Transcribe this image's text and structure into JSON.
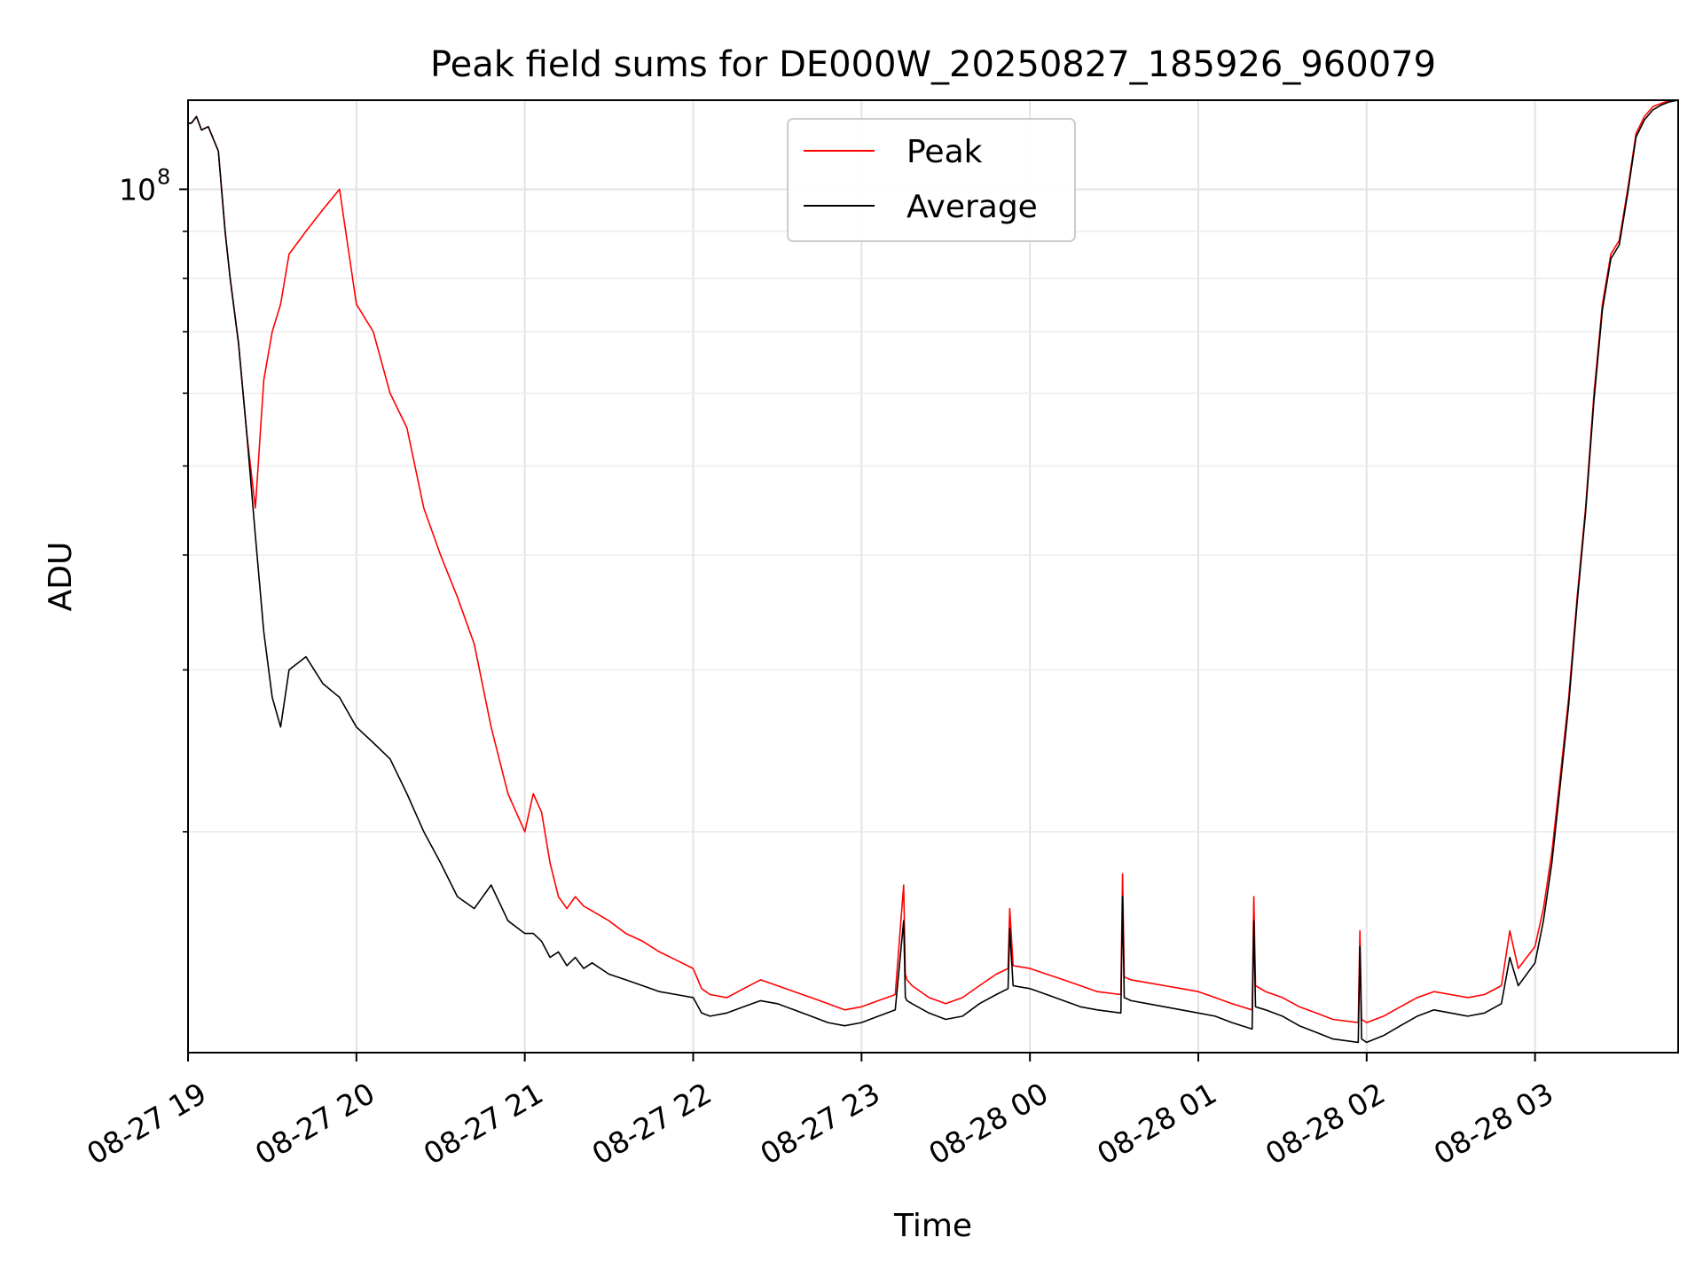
{
  "chart_data": {
    "type": "line",
    "title": "Peak field sums for DE000W_20250827_185926_960079",
    "xlabel": "Time",
    "ylabel": "ADU",
    "x_unit": "hours since 08-27 19:00",
    "xlim": [
      0,
      8.85
    ],
    "ylim": [
      11500000,
      125000000
    ],
    "y_scale": "log",
    "grid": true,
    "legend": {
      "placement": "top-center"
    },
    "x_ticks": [
      {
        "value": 0,
        "label": "08-27 19"
      },
      {
        "value": 1,
        "label": "08-27 20"
      },
      {
        "value": 2,
        "label": "08-27 21"
      },
      {
        "value": 3,
        "label": "08-27 22"
      },
      {
        "value": 4,
        "label": "08-27 23"
      },
      {
        "value": 5,
        "label": "08-28 00"
      },
      {
        "value": 6,
        "label": "08-28 01"
      },
      {
        "value": 7,
        "label": "08-28 02"
      },
      {
        "value": 8,
        "label": "08-28 03"
      }
    ],
    "y_ticks": [
      {
        "value": 100000000,
        "label": "10",
        "exp": "8"
      }
    ],
    "series": [
      {
        "name": "Peak",
        "color": "#ff0000",
        "x": [
          0.0,
          0.02,
          0.05,
          0.08,
          0.12,
          0.18,
          0.22,
          0.25,
          0.3,
          0.35,
          0.4,
          0.45,
          0.5,
          0.55,
          0.6,
          0.7,
          0.8,
          0.9,
          1.0,
          1.1,
          1.2,
          1.3,
          1.4,
          1.5,
          1.6,
          1.7,
          1.8,
          1.9,
          2.0,
          2.05,
          2.1,
          2.15,
          2.2,
          2.25,
          2.3,
          2.35,
          2.4,
          2.5,
          2.6,
          2.7,
          2.8,
          2.9,
          3.0,
          3.05,
          3.1,
          3.2,
          3.3,
          3.4,
          3.5,
          3.6,
          3.7,
          3.8,
          3.9,
          4.0,
          4.1,
          4.2,
          4.25,
          4.26,
          4.27,
          4.3,
          4.4,
          4.5,
          4.6,
          4.7,
          4.8,
          4.87,
          4.88,
          4.9,
          5.0,
          5.1,
          5.2,
          5.3,
          5.4,
          5.54,
          5.55,
          5.56,
          5.6,
          5.7,
          5.8,
          5.9,
          6.0,
          6.1,
          6.2,
          6.32,
          6.33,
          6.34,
          6.4,
          6.5,
          6.6,
          6.7,
          6.8,
          6.95,
          6.96,
          6.97,
          7.0,
          7.1,
          7.2,
          7.3,
          7.4,
          7.5,
          7.6,
          7.7,
          7.8,
          7.85,
          7.9,
          8.0,
          8.05,
          8.1,
          8.15,
          8.2,
          8.25,
          8.3,
          8.35,
          8.4,
          8.45,
          8.5,
          8.55,
          8.6,
          8.65,
          8.7,
          8.75,
          8.8,
          8.85
        ],
        "y": [
          118000000,
          118000000,
          120000000,
          116000000,
          117000000,
          110000000,
          90000000,
          80000000,
          68000000,
          54000000,
          45000000,
          62000000,
          70000000,
          75000000,
          85000000,
          90000000,
          95000000,
          100000000,
          75000000,
          70000000,
          60000000,
          55000000,
          45000000,
          40000000,
          36000000,
          32000000,
          26000000,
          22000000,
          20000000,
          22000000,
          21000000,
          18500000,
          17000000,
          16500000,
          17000000,
          16600000,
          16400000,
          16000000,
          15500000,
          15200000,
          14800000,
          14500000,
          14200000,
          13500000,
          13300000,
          13200000,
          13500000,
          13800000,
          13600000,
          13400000,
          13200000,
          13000000,
          12800000,
          12900000,
          13100000,
          13300000,
          17500000,
          14000000,
          13800000,
          13600000,
          13200000,
          13000000,
          13200000,
          13600000,
          14000000,
          14200000,
          16500000,
          14300000,
          14200000,
          14000000,
          13800000,
          13600000,
          13400000,
          13300000,
          18000000,
          13900000,
          13800000,
          13700000,
          13600000,
          13500000,
          13400000,
          13200000,
          13000000,
          12800000,
          17000000,
          13600000,
          13400000,
          13200000,
          12900000,
          12700000,
          12500000,
          12400000,
          15600000,
          12500000,
          12400000,
          12600000,
          12900000,
          13200000,
          13400000,
          13300000,
          13200000,
          13300000,
          13600000,
          15600000,
          14200000,
          15000000,
          16500000,
          19000000,
          23000000,
          28000000,
          36000000,
          45000000,
          60000000,
          75000000,
          85000000,
          88000000,
          100000000,
          115000000,
          120000000,
          123000000,
          124000000,
          125000000,
          125000000
        ]
      },
      {
        "name": "Average",
        "color": "#000000",
        "x": [
          0.0,
          0.02,
          0.05,
          0.08,
          0.12,
          0.18,
          0.22,
          0.25,
          0.3,
          0.35,
          0.4,
          0.45,
          0.5,
          0.55,
          0.6,
          0.7,
          0.8,
          0.9,
          1.0,
          1.1,
          1.2,
          1.3,
          1.4,
          1.5,
          1.6,
          1.7,
          1.8,
          1.9,
          2.0,
          2.05,
          2.1,
          2.15,
          2.2,
          2.25,
          2.3,
          2.35,
          2.4,
          2.5,
          2.6,
          2.7,
          2.8,
          2.9,
          3.0,
          3.05,
          3.1,
          3.2,
          3.3,
          3.4,
          3.5,
          3.6,
          3.7,
          3.8,
          3.9,
          4.0,
          4.1,
          4.2,
          4.25,
          4.26,
          4.27,
          4.3,
          4.4,
          4.5,
          4.6,
          4.7,
          4.8,
          4.87,
          4.88,
          4.9,
          5.0,
          5.1,
          5.2,
          5.3,
          5.4,
          5.54,
          5.55,
          5.56,
          5.6,
          5.7,
          5.8,
          5.9,
          6.0,
          6.1,
          6.2,
          6.32,
          6.33,
          6.34,
          6.4,
          6.5,
          6.6,
          6.7,
          6.8,
          6.95,
          6.96,
          6.97,
          7.0,
          7.1,
          7.2,
          7.3,
          7.4,
          7.5,
          7.6,
          7.7,
          7.8,
          7.85,
          7.9,
          8.0,
          8.05,
          8.1,
          8.15,
          8.2,
          8.25,
          8.3,
          8.35,
          8.4,
          8.45,
          8.5,
          8.55,
          8.6,
          8.65,
          8.7,
          8.75,
          8.8,
          8.85
        ],
        "y": [
          118000000,
          118000000,
          120000000,
          116000000,
          117000000,
          110000000,
          90000000,
          80000000,
          68000000,
          54000000,
          42000000,
          33000000,
          28000000,
          26000000,
          30000000,
          31000000,
          29000000,
          28000000,
          26000000,
          25000000,
          24000000,
          22000000,
          20000000,
          18500000,
          17000000,
          16500000,
          17500000,
          16000000,
          15500000,
          15500000,
          15200000,
          14600000,
          14800000,
          14300000,
          14600000,
          14200000,
          14400000,
          14000000,
          13800000,
          13600000,
          13400000,
          13300000,
          13200000,
          12700000,
          12600000,
          12700000,
          12900000,
          13100000,
          13000000,
          12800000,
          12600000,
          12400000,
          12300000,
          12400000,
          12600000,
          12800000,
          16000000,
          13200000,
          13100000,
          13000000,
          12700000,
          12500000,
          12600000,
          13000000,
          13300000,
          13500000,
          15700000,
          13600000,
          13500000,
          13300000,
          13100000,
          12900000,
          12800000,
          12700000,
          17000000,
          13200000,
          13100000,
          13000000,
          12900000,
          12800000,
          12700000,
          12600000,
          12400000,
          12200000,
          16000000,
          12900000,
          12800000,
          12600000,
          12300000,
          12100000,
          11900000,
          11800000,
          15000000,
          11900000,
          11800000,
          12000000,
          12300000,
          12600000,
          12800000,
          12700000,
          12600000,
          12700000,
          13000000,
          14600000,
          13600000,
          14400000,
          16000000,
          18500000,
          22500000,
          27500000,
          35500000,
          44500000,
          59000000,
          74000000,
          84000000,
          87000000,
          99000000,
          114000000,
          119000000,
          122000000,
          123500000,
          124500000,
          125000000
        ]
      }
    ]
  }
}
